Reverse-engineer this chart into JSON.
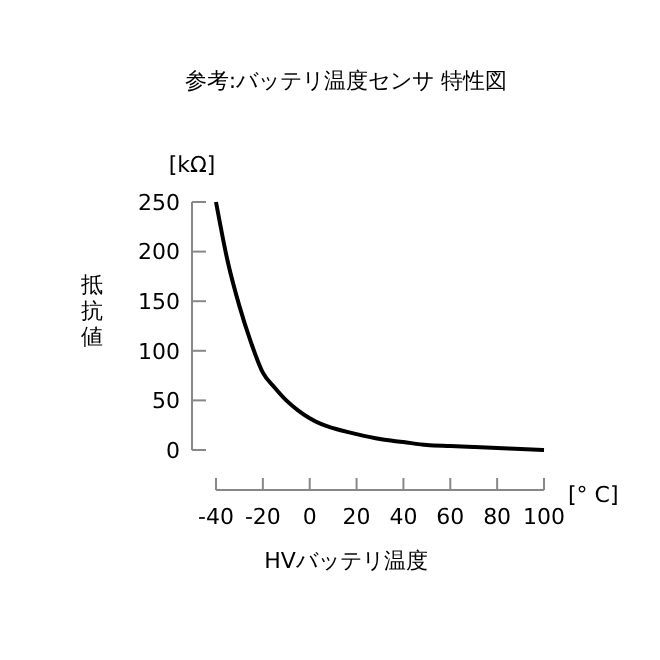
{
  "chart_data": {
    "type": "line",
    "title": "参考:バッテリ温度センサ 特性図",
    "xlabel": "HVバッテリ温度",
    "ylabel": "抵抗値",
    "annotations": [
      "[kΩ]",
      "[° C]"
    ],
    "x": [
      -40,
      -35,
      -30,
      -25,
      -20,
      -15,
      -10,
      -5,
      0,
      5,
      10,
      20,
      30,
      40,
      50,
      60,
      70,
      80,
      90,
      100
    ],
    "series": [
      {
        "color": "#000000",
        "values": [
          250,
          190,
          145,
          108,
          78,
          63,
          50,
          40,
          32,
          26,
          22,
          16,
          11,
          8,
          5,
          4,
          3,
          2,
          1,
          0
        ]
      }
    ],
    "xlim": [
      -40,
      100
    ],
    "xticks": [
      -40,
      -20,
      0,
      20,
      40,
      60,
      80,
      100
    ],
    "ylim": [
      0,
      250
    ],
    "yticks": [
      0,
      50,
      100,
      150,
      200,
      250
    ],
    "grid": false,
    "marker": "none",
    "line_style": "solid"
  }
}
